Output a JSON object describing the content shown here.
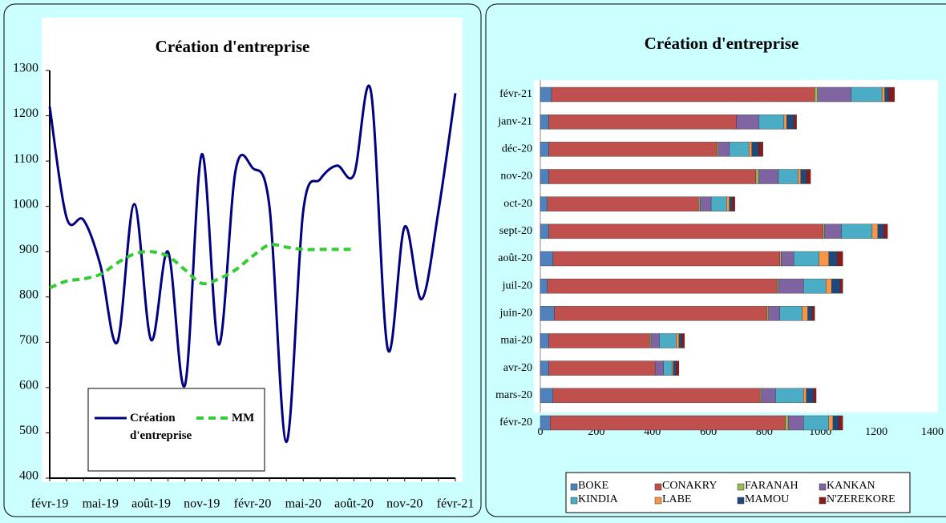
{
  "chart_data": [
    {
      "type": "line",
      "title": "Création d'entreprise",
      "categories": [
        "févr-19",
        null,
        null,
        "mai-19",
        null,
        null,
        "août-19",
        null,
        null,
        "nov-19",
        null,
        null,
        "févr-20",
        null,
        null,
        "mai-20",
        null,
        null,
        "août-20",
        null,
        null,
        "nov-20",
        null,
        null,
        "févr-21"
      ],
      "series": [
        {
          "name": "Création d'entreprise",
          "color": "#000080",
          "dashed": false,
          "values": [
            1220,
            975,
            970,
            870,
            700,
            1005,
            705,
            900,
            605,
            1115,
            695,
            1080,
            1085,
            1000,
            480,
            990,
            1060,
            1090,
            1070,
            1255,
            685,
            955,
            795,
            990,
            1250
          ]
        },
        {
          "name": "MM",
          "color": "#33cc33",
          "dashed": true,
          "values": [
            820,
            835,
            840,
            850,
            875,
            895,
            900,
            890,
            860,
            830,
            840,
            860,
            890,
            915,
            910,
            905,
            905,
            905,
            905,
            null,
            null,
            null,
            null,
            null,
            null
          ]
        }
      ],
      "ylim": [
        400,
        1300
      ],
      "yticks": [
        400,
        500,
        600,
        700,
        800,
        900,
        1000,
        1100,
        1200,
        1300
      ],
      "grid": false,
      "legend": "bottom-left"
    },
    {
      "type": "bar",
      "orientation": "horizontal",
      "stacked": true,
      "title": "Création d'entreprise",
      "categories": [
        "févr-20",
        "mars-20",
        "avr-20",
        "mai-20",
        "juin-20",
        "juil-20",
        "août-20",
        "sept-20",
        "oct-20",
        "nov-20",
        "déc-20",
        "janv-21",
        "févr-21"
      ],
      "series": [
        {
          "name": "BOKE",
          "color": "#4f81bd",
          "values": [
            35,
            45,
            30,
            30,
            50,
            25,
            45,
            30,
            25,
            30,
            30,
            30,
            40
          ]
        },
        {
          "name": "CONAKRY",
          "color": "#c0504d",
          "values": [
            840,
            740,
            380,
            360,
            760,
            820,
            810,
            980,
            540,
            740,
            600,
            670,
            940
          ]
        },
        {
          "name": "FARANAH",
          "color": "#9bbb59",
          "values": [
            10,
            5,
            0,
            5,
            5,
            5,
            5,
            5,
            5,
            10,
            5,
            0,
            10
          ]
        },
        {
          "name": "KANKAN",
          "color": "#8064a2",
          "values": [
            55,
            50,
            30,
            30,
            40,
            90,
            45,
            60,
            40,
            70,
            40,
            80,
            120
          ]
        },
        {
          "name": "KINDIA",
          "color": "#4bacc6",
          "values": [
            90,
            100,
            30,
            60,
            80,
            80,
            90,
            110,
            55,
            70,
            70,
            90,
            110
          ]
        },
        {
          "name": "LABE",
          "color": "#f79646",
          "values": [
            15,
            10,
            5,
            10,
            20,
            20,
            35,
            20,
            10,
            10,
            10,
            10,
            10
          ]
        },
        {
          "name": "MAMOU",
          "color": "#1f497d",
          "values": [
            20,
            25,
            10,
            10,
            15,
            30,
            30,
            20,
            10,
            20,
            25,
            25,
            15
          ]
        },
        {
          "name": "N'ZEREKORE",
          "color": "#8b1a1a",
          "values": [
            15,
            10,
            10,
            10,
            10,
            10,
            20,
            15,
            10,
            15,
            15,
            10,
            20
          ]
        }
      ],
      "xlim": [
        0,
        1400
      ],
      "xticks": [
        0,
        200,
        400,
        600,
        800,
        1000,
        1200,
        1400
      ],
      "grid": false,
      "legend": "bottom"
    }
  ]
}
